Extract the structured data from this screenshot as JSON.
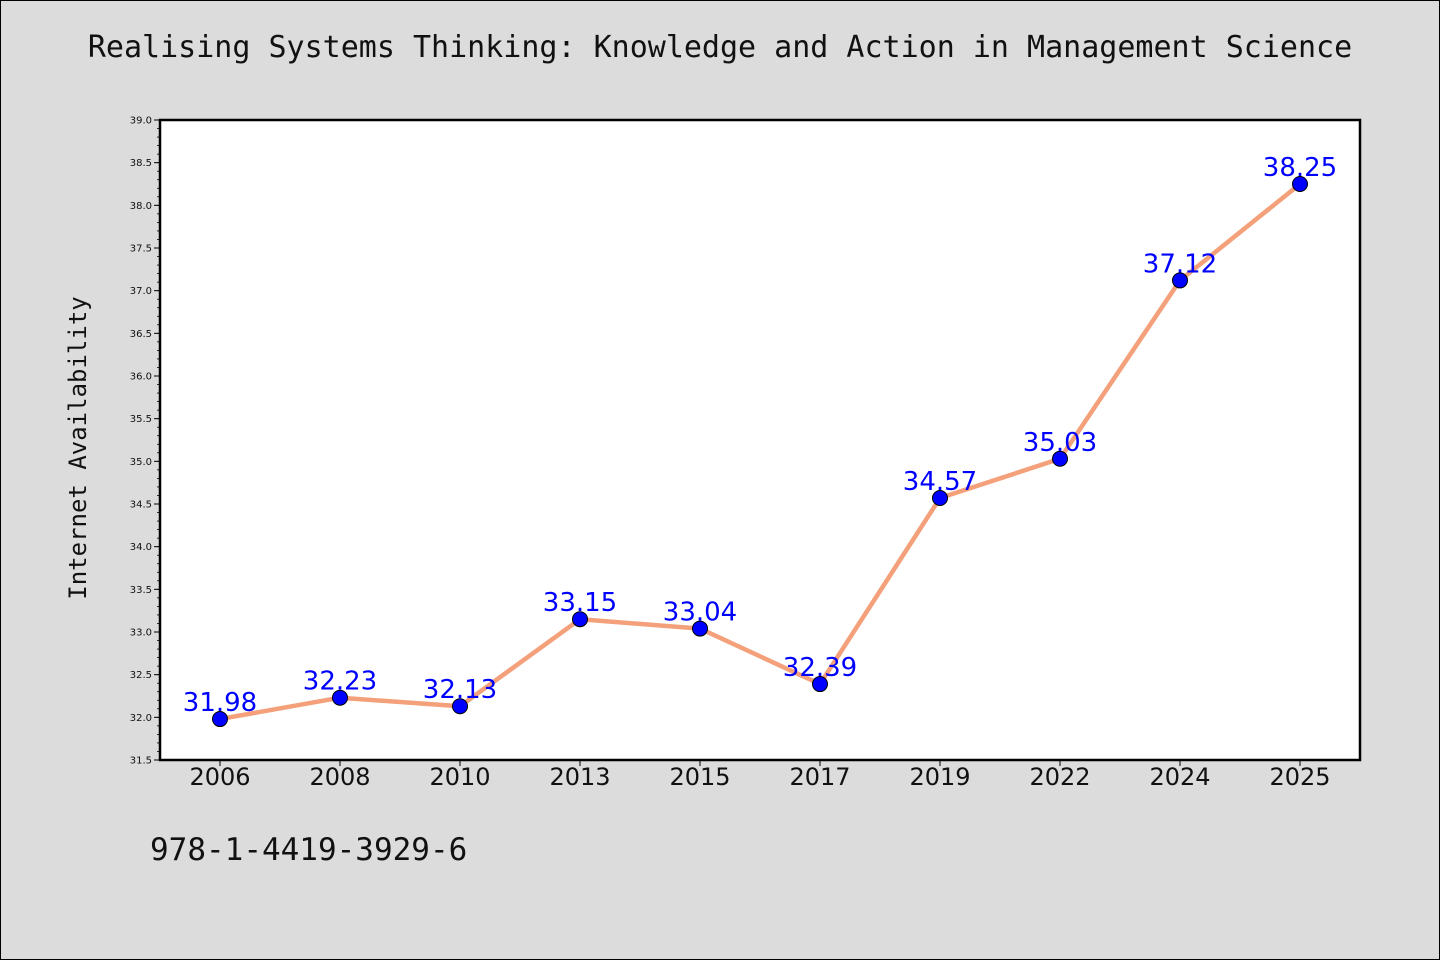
{
  "page": {
    "title": "Realising Systems Thinking: Knowledge and Action in Management Science",
    "footer_text": "978-1-4419-3929-6",
    "background_color": "#dcdcdc"
  },
  "chart_data": {
    "type": "line",
    "title": "Realising Systems Thinking: Knowledge and Action in Management Science",
    "xlabel": "",
    "ylabel": "Internet Availability",
    "categories": [
      "2006",
      "2008",
      "2010",
      "2013",
      "2015",
      "2017",
      "2019",
      "2022",
      "2024",
      "2025"
    ],
    "values": [
      31.98,
      32.23,
      32.13,
      33.15,
      33.04,
      32.39,
      34.57,
      35.03,
      37.12,
      38.25
    ],
    "data_labels": [
      "31.98",
      "32.23",
      "32.13",
      "33.15",
      "33.04",
      "32.39",
      "34.57",
      "35.03",
      "37.12",
      "38.25"
    ],
    "ylim": [
      31.5,
      39.0
    ],
    "yticks": [
      "31.5",
      "32.0",
      "32.5",
      "33.0",
      "33.5",
      "34.0",
      "34.5",
      "35.0",
      "35.5",
      "36.0",
      "36.5",
      "37.0",
      "37.5",
      "38.0",
      "38.5",
      "39.0"
    ],
    "grid": false,
    "legend": "none",
    "line_color": "#f4a07a",
    "marker_color": "#0000ff",
    "label_color": "#0000ff"
  }
}
